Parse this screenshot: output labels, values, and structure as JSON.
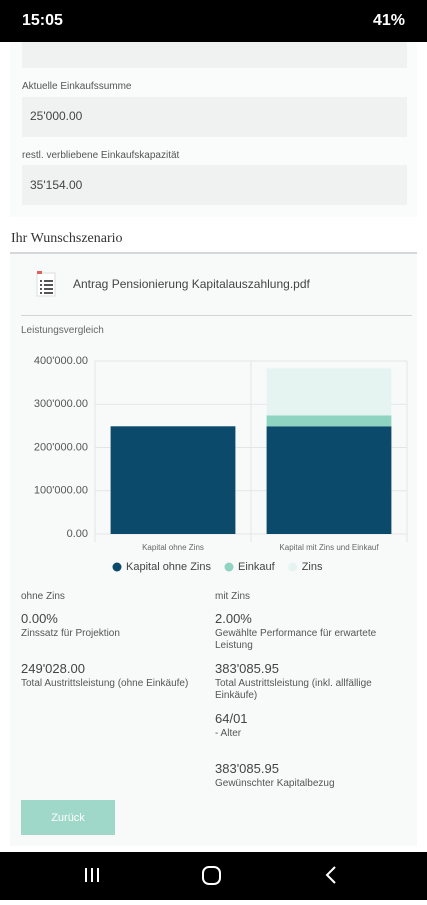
{
  "status_bar": {
    "time": "15:05",
    "battery": "41%"
  },
  "form": {
    "fields": [
      {
        "label": "Aktuelle Einkaufssumme",
        "value": "25'000.00"
      },
      {
        "label": "restl. verbliebene Einkaufskapazität",
        "value": "35'154.00"
      }
    ]
  },
  "scenario": {
    "title": "Ihr Wunschszenario",
    "document": "Antrag Pensionierung Kapitalauszahlung.pdf",
    "chart_data": {
      "type": "bar",
      "stacked": true,
      "title": "Leistungsvergleich",
      "categories": [
        "Kapital ohne Zins",
        "Kapital mit Zins und Einkauf"
      ],
      "series": [
        {
          "name": "Kapital ohne Zins",
          "color": "#0b4a6b",
          "values": [
            249028,
            249028
          ]
        },
        {
          "name": "Einkauf",
          "color": "#8fd3c1",
          "values": [
            0,
            25000
          ]
        },
        {
          "name": "Zins",
          "color": "#e6f4f1",
          "values": [
            0,
            109058
          ]
        }
      ],
      "ylim": [
        0,
        400000
      ],
      "yticks": [
        {
          "value": 0,
          "label": "0.00"
        },
        {
          "value": 100000,
          "label": "100'000.00"
        },
        {
          "value": 200000,
          "label": "200'000.00"
        },
        {
          "value": 300000,
          "label": "300'000.00"
        },
        {
          "value": 400000,
          "label": "400'000.00"
        }
      ],
      "grid": true
    },
    "columns": [
      {
        "heading": "ohne Zins",
        "items": [
          {
            "value": "0.00%",
            "label": "Zinssatz für Projektion"
          },
          {
            "value": "249'028.00",
            "label": "Total Austrittsleistung (ohne Einkäufe)"
          }
        ]
      },
      {
        "heading": "mit Zins",
        "items": [
          {
            "value": "2.00%",
            "label": "Gewählte Performance für erwartete Leistung"
          },
          {
            "value": "383'085.95",
            "label": "Total Austrittsleistung (inkl. allfällige Einkäufe)"
          },
          {
            "value": "64/01",
            "label": "- Alter"
          },
          {
            "value": "383'085.95",
            "label": "Gewünschter Kapitalbezug"
          }
        ]
      }
    ],
    "button": "Zurück"
  }
}
